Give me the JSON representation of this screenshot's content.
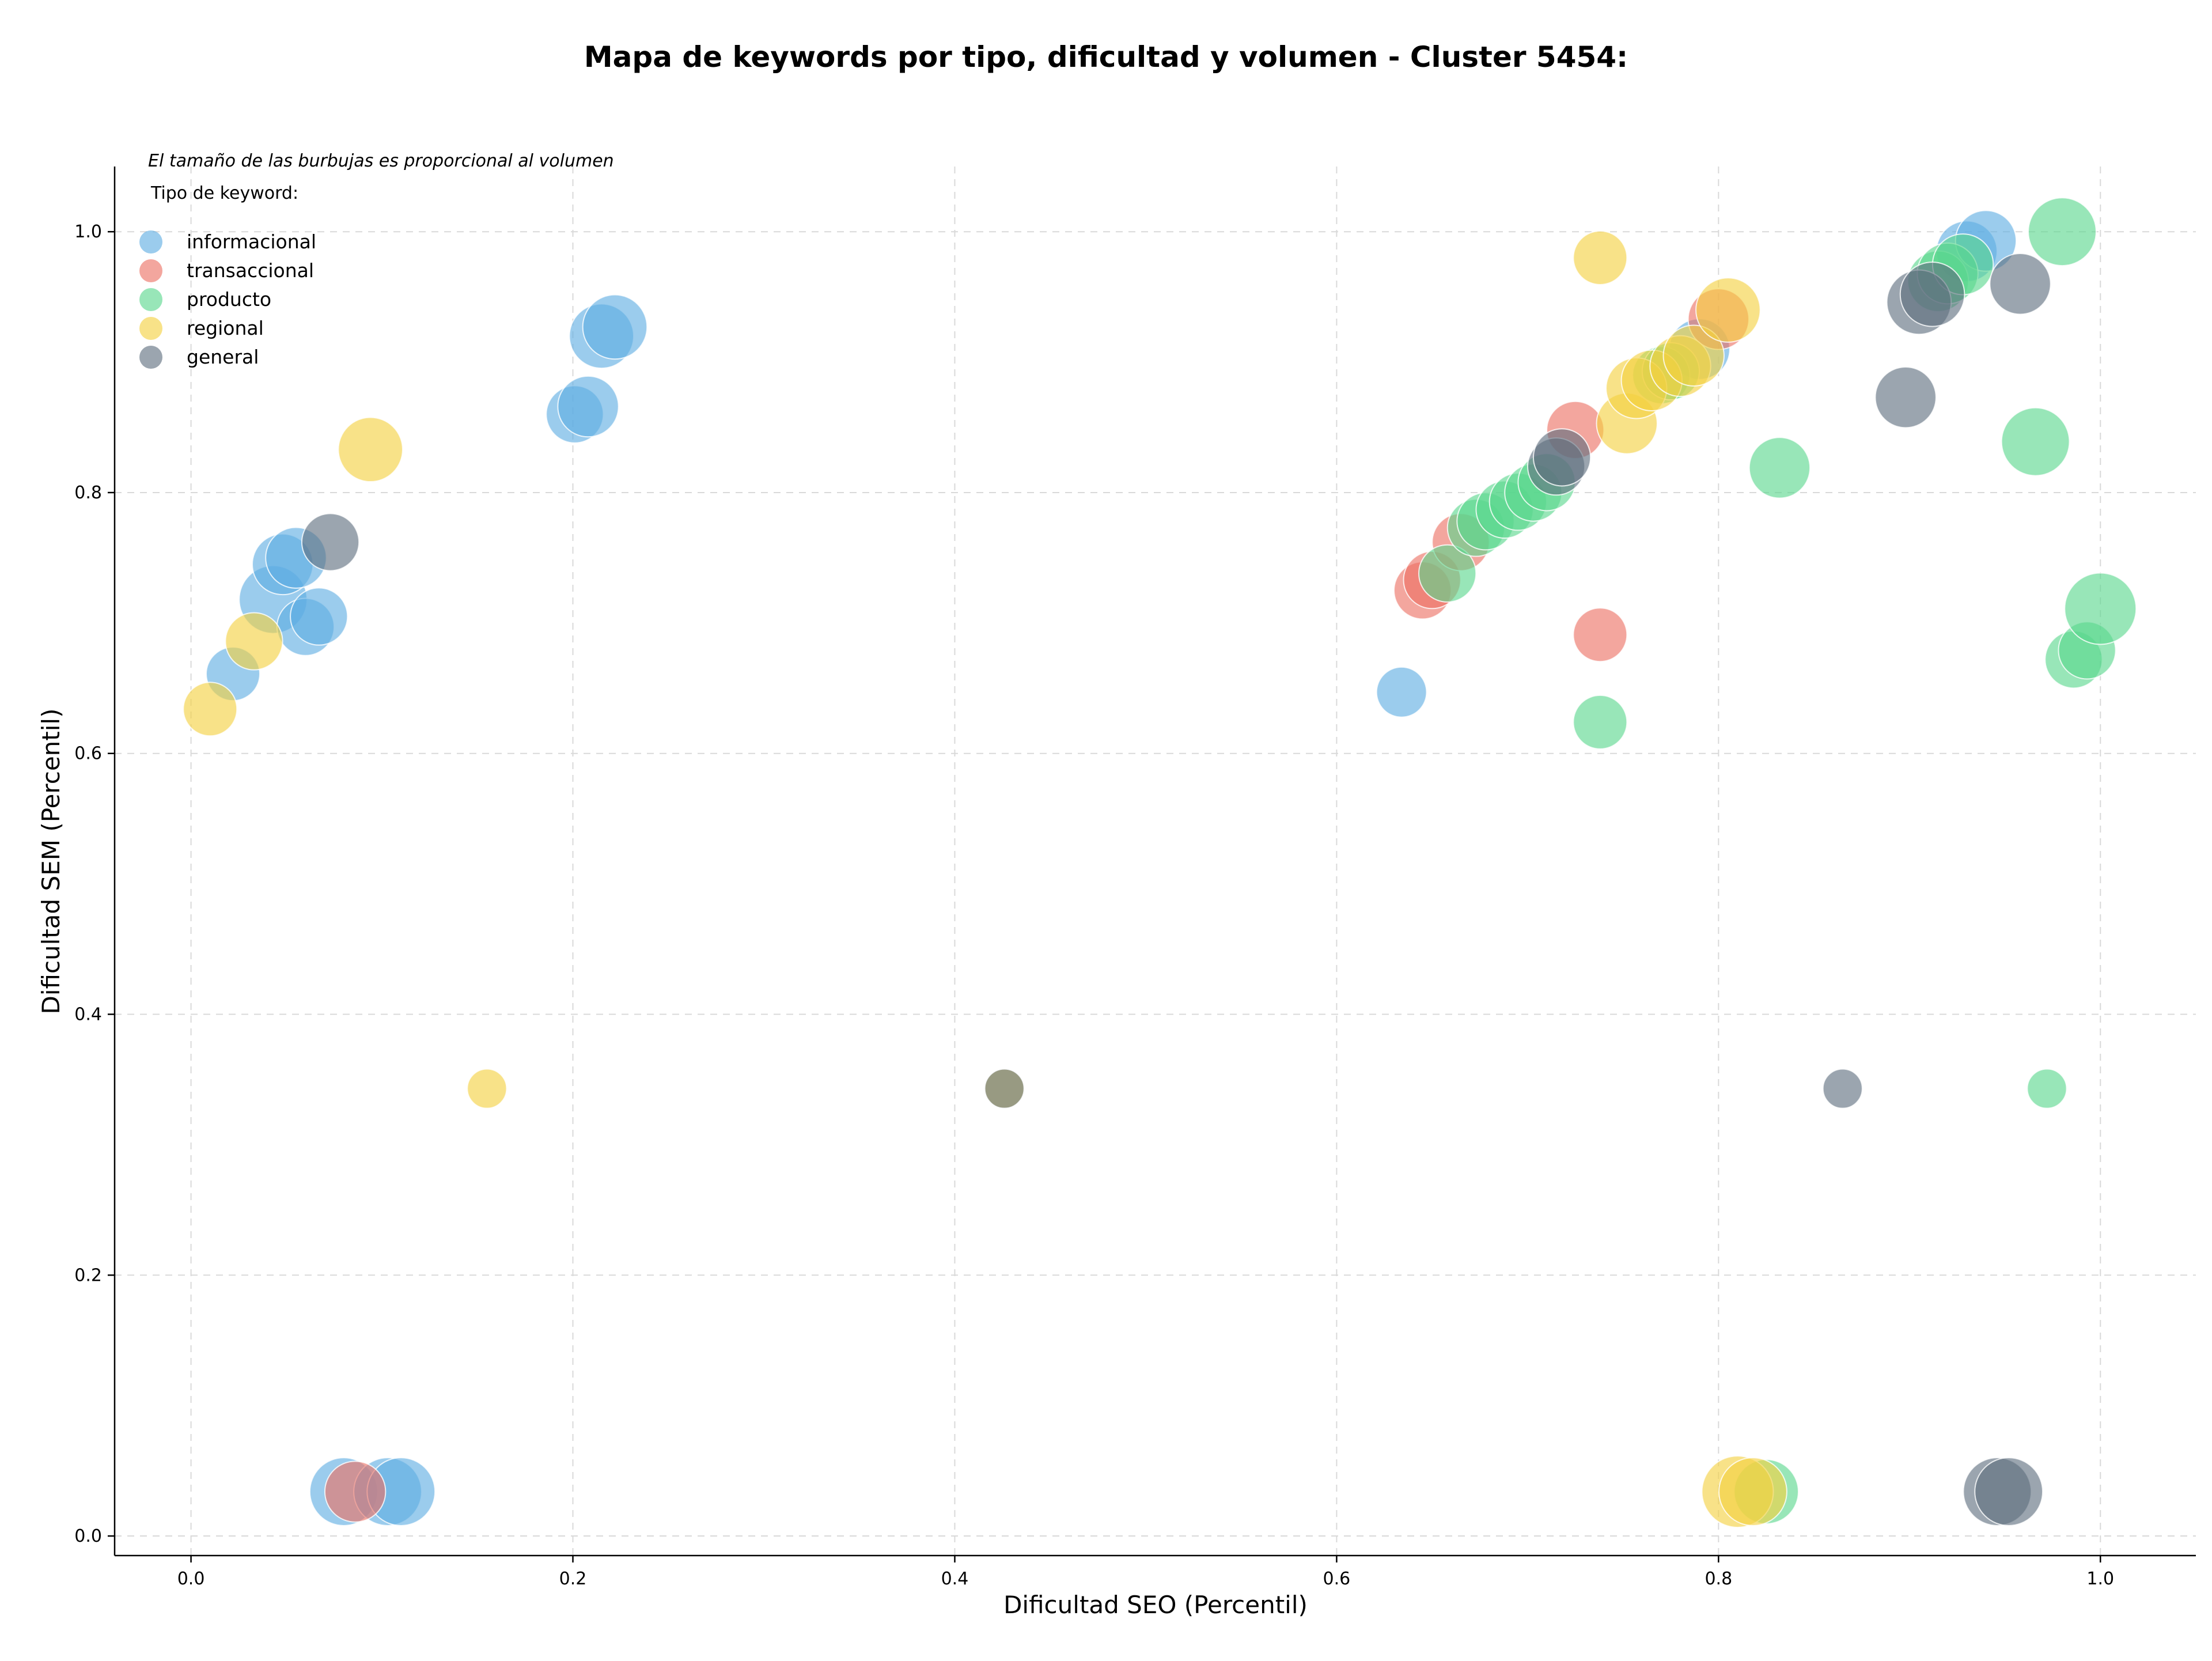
{
  "chart_data": {
    "type": "scatter",
    "title": "Mapa de keywords por tipo, dificultad y volumen - Cluster 5454:",
    "xlabel": "Dificultad SEO (Percentil)",
    "ylabel": "Dificultad SEM (Percentil)",
    "note": "El tamaño de las burbujas es proporcional al volumen",
    "legend_title": "Tipo de keyword:",
    "legend_placement": "top-left",
    "xlim": [
      -0.04,
      1.05
    ],
    "ylim": [
      -0.015,
      1.05
    ],
    "xticks": [
      0.0,
      0.2,
      0.4,
      0.6,
      0.8,
      1.0
    ],
    "yticks": [
      0.0,
      0.2,
      0.4,
      0.6,
      0.8,
      1.0
    ],
    "xtick_labels": [
      "0.0",
      "0.2",
      "0.4",
      "0.6",
      "0.8",
      "1.0"
    ],
    "ytick_labels": [
      "0.0",
      "0.2",
      "0.4",
      "0.6",
      "0.8",
      "1.0"
    ],
    "grid": true,
    "series": [
      {
        "name": "informacional",
        "color": "#5DADE2",
        "points": [
          {
            "x": 0.043,
            "y": 0.718,
            "s": 0.95
          },
          {
            "x": 0.048,
            "y": 0.745,
            "s": 0.85
          },
          {
            "x": 0.055,
            "y": 0.75,
            "s": 0.85
          },
          {
            "x": 0.06,
            "y": 0.697,
            "s": 0.8
          },
          {
            "x": 0.067,
            "y": 0.705,
            "s": 0.8
          },
          {
            "x": 0.022,
            "y": 0.661,
            "s": 0.75
          },
          {
            "x": 0.201,
            "y": 0.86,
            "s": 0.8
          },
          {
            "x": 0.208,
            "y": 0.866,
            "s": 0.85
          },
          {
            "x": 0.215,
            "y": 0.92,
            "s": 0.9
          },
          {
            "x": 0.222,
            "y": 0.927,
            "s": 0.9
          },
          {
            "x": 0.634,
            "y": 0.647,
            "s": 0.7
          },
          {
            "x": 0.79,
            "y": 0.91,
            "s": 0.85
          },
          {
            "x": 0.93,
            "y": 0.985,
            "s": 0.85
          },
          {
            "x": 0.94,
            "y": 0.993,
            "s": 0.85
          },
          {
            "x": 0.08,
            "y": 0.034,
            "s": 0.95
          },
          {
            "x": 0.103,
            "y": 0.034,
            "s": 0.95
          },
          {
            "x": 0.11,
            "y": 0.034,
            "s": 0.95
          }
        ]
      },
      {
        "name": "transaccional",
        "color": "#EC7063",
        "points": [
          {
            "x": 0.086,
            "y": 0.034,
            "s": 0.85
          },
          {
            "x": 0.645,
            "y": 0.725,
            "s": 0.8
          },
          {
            "x": 0.65,
            "y": 0.733,
            "s": 0.8
          },
          {
            "x": 0.665,
            "y": 0.762,
            "s": 0.8
          },
          {
            "x": 0.725,
            "y": 0.848,
            "s": 0.8
          },
          {
            "x": 0.738,
            "y": 0.691,
            "s": 0.75
          },
          {
            "x": 0.8,
            "y": 0.933,
            "s": 0.85
          }
        ]
      },
      {
        "name": "producto",
        "color": "#58D68D",
        "points": [
          {
            "x": 0.658,
            "y": 0.738,
            "s": 0.8
          },
          {
            "x": 0.673,
            "y": 0.773,
            "s": 0.8
          },
          {
            "x": 0.678,
            "y": 0.778,
            "s": 0.8
          },
          {
            "x": 0.688,
            "y": 0.787,
            "s": 0.8
          },
          {
            "x": 0.695,
            "y": 0.793,
            "s": 0.8
          },
          {
            "x": 0.703,
            "y": 0.8,
            "s": 0.8
          },
          {
            "x": 0.71,
            "y": 0.808,
            "s": 0.8
          },
          {
            "x": 0.738,
            "y": 0.624,
            "s": 0.75
          },
          {
            "x": 0.77,
            "y": 0.89,
            "s": 0.8
          },
          {
            "x": 0.775,
            "y": 0.893,
            "s": 0.8
          },
          {
            "x": 0.832,
            "y": 0.819,
            "s": 0.85
          },
          {
            "x": 0.825,
            "y": 0.034,
            "s": 0.9
          },
          {
            "x": 0.915,
            "y": 0.962,
            "s": 0.85
          },
          {
            "x": 0.92,
            "y": 0.968,
            "s": 0.85
          },
          {
            "x": 0.928,
            "y": 0.975,
            "s": 0.85
          },
          {
            "x": 0.966,
            "y": 0.839,
            "s": 0.95
          },
          {
            "x": 0.972,
            "y": 0.343,
            "s": 0.55
          },
          {
            "x": 0.98,
            "y": 1.0,
            "s": 0.95
          },
          {
            "x": 0.986,
            "y": 0.672,
            "s": 0.8
          },
          {
            "x": 0.993,
            "y": 0.679,
            "s": 0.8
          },
          {
            "x": 1.0,
            "y": 0.711,
            "s": 1.0
          }
        ]
      },
      {
        "name": "regional",
        "color": "#F4D03F",
        "points": [
          {
            "x": 0.01,
            "y": 0.634,
            "s": 0.75
          },
          {
            "x": 0.033,
            "y": 0.686,
            "s": 0.8
          },
          {
            "x": 0.094,
            "y": 0.833,
            "s": 0.9
          },
          {
            "x": 0.155,
            "y": 0.343,
            "s": 0.55
          },
          {
            "x": 0.426,
            "y": 0.343,
            "s": 0.55
          },
          {
            "x": 0.738,
            "y": 0.98,
            "s": 0.75
          },
          {
            "x": 0.752,
            "y": 0.853,
            "s": 0.85
          },
          {
            "x": 0.757,
            "y": 0.88,
            "s": 0.85
          },
          {
            "x": 0.765,
            "y": 0.886,
            "s": 0.85
          },
          {
            "x": 0.78,
            "y": 0.897,
            "s": 0.85
          },
          {
            "x": 0.787,
            "y": 0.905,
            "s": 0.85
          },
          {
            "x": 0.805,
            "y": 0.94,
            "s": 0.9
          },
          {
            "x": 0.81,
            "y": 0.034,
            "s": 1.0
          },
          {
            "x": 0.818,
            "y": 0.034,
            "s": 0.95
          }
        ]
      },
      {
        "name": "general",
        "color": "#5D6D7E",
        "points": [
          {
            "x": 0.073,
            "y": 0.762,
            "s": 0.8
          },
          {
            "x": 0.426,
            "y": 0.343,
            "s": 0.55
          },
          {
            "x": 0.715,
            "y": 0.82,
            "s": 0.8
          },
          {
            "x": 0.718,
            "y": 0.827,
            "s": 0.8
          },
          {
            "x": 0.865,
            "y": 0.343,
            "s": 0.55
          },
          {
            "x": 0.898,
            "y": 0.873,
            "s": 0.85
          },
          {
            "x": 0.905,
            "y": 0.946,
            "s": 0.9
          },
          {
            "x": 0.912,
            "y": 0.952,
            "s": 0.9
          },
          {
            "x": 0.958,
            "y": 0.96,
            "s": 0.85
          },
          {
            "x": 0.946,
            "y": 0.034,
            "s": 0.95
          },
          {
            "x": 0.952,
            "y": 0.034,
            "s": 0.95
          }
        ]
      }
    ]
  }
}
